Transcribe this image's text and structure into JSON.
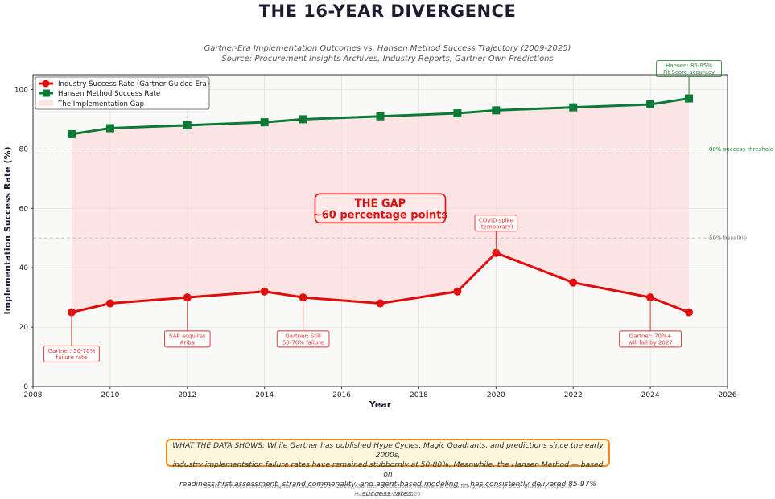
{
  "header": {
    "title": "THE 16-YEAR DIVERGENCE",
    "subtitle_line1": "Gartner-Era Implementation Outcomes vs. Hansen Method Success Trajectory (2009-2025)",
    "subtitle_line2": "Source: Procurement Insights Archives, Industry Reports, Gartner Own Predictions"
  },
  "chart_data": {
    "type": "line",
    "xlabel": "Year",
    "ylabel": "Implementation Success Rate (%)",
    "xlim": [
      2008,
      2026
    ],
    "ylim": [
      0,
      105
    ],
    "xticks": [
      2008,
      2010,
      2012,
      2014,
      2016,
      2018,
      2020,
      2022,
      2024,
      2026
    ],
    "yticks": [
      0,
      20,
      40,
      60,
      80,
      100
    ],
    "grid": true,
    "legend_position": "top-left",
    "x": [
      2009,
      2010,
      2012,
      2014,
      2015,
      2017,
      2019,
      2020,
      2022,
      2024,
      2025
    ],
    "series": [
      {
        "name": "Industry Success Rate (Gartner-Guided Era)",
        "color": "#e00d0d",
        "marker": "circle",
        "values": [
          25,
          28,
          30,
          32,
          30,
          28,
          32,
          45,
          35,
          30,
          25
        ]
      },
      {
        "name": "Hansen Method Success Rate",
        "color": "#0a7a36",
        "marker": "square",
        "values": [
          85,
          87,
          88,
          89,
          90,
          91,
          92,
          93,
          94,
          95,
          97
        ]
      }
    ],
    "gap_fill": {
      "name": "The Implementation Gap",
      "color": "#ffd6d6"
    },
    "reference_lines": [
      {
        "y": 80,
        "label": "80% success threshold",
        "color": "#2e8b3a"
      },
      {
        "y": 50,
        "label": "50% baseline",
        "color": "#777777"
      }
    ],
    "gap_label": {
      "line1": "THE GAP",
      "line2": "~60 percentage points",
      "x": 2017,
      "y": 60
    },
    "annotations": [
      {
        "series": 0,
        "x": 2009,
        "y": 25,
        "line1": "Gartner: 50-70%",
        "line2": "failure rate",
        "label_y": 11,
        "label_x": 2009
      },
      {
        "series": 0,
        "x": 2012,
        "y": 30,
        "line1": "SAP acquires",
        "line2": "Ariba",
        "label_y": 16,
        "label_x": 2012
      },
      {
        "series": 0,
        "x": 2015,
        "y": 30,
        "line1": "Gartner: Still",
        "line2": "50-70% failure",
        "label_y": 16,
        "label_x": 2015
      },
      {
        "series": 0,
        "x": 2020,
        "y": 45,
        "line1": "COVID spike",
        "line2": "(temporary)",
        "label_y": 55,
        "label_x": 2020
      },
      {
        "series": 0,
        "x": 2024,
        "y": 30,
        "line1": "Gartner: 70%+",
        "line2": "will fail by 2027",
        "label_y": 16,
        "label_x": 2024
      },
      {
        "series": 1,
        "x": 2025,
        "y": 97,
        "line1": "Hansen: 85-95%",
        "line2": "Fit Score accuracy",
        "label_y": 107,
        "label_x": 2025
      }
    ]
  },
  "footer": {
    "note_line1": "WHAT THE DATA SHOWS: While Gartner has published Hype Cycles, Magic Quadrants, and predictions since the early 2000s,",
    "note_line2": "industry implementation failure rates have remained stubbornly at 50-80%. Meanwhile, the Hansen Method — based on",
    "note_line3": "readiness-first assessment, strand commonality, and agent-based modeling — has consistently delivered 85-97% success rates.",
    "sources_line1": "Sources: Procurement Insights Archives (2007-2025), Gartner Predictions, Panorama Consulting, McKinsey, BCG, Industry Reports",
    "sources_line2": "Hansen Models © 2026"
  }
}
